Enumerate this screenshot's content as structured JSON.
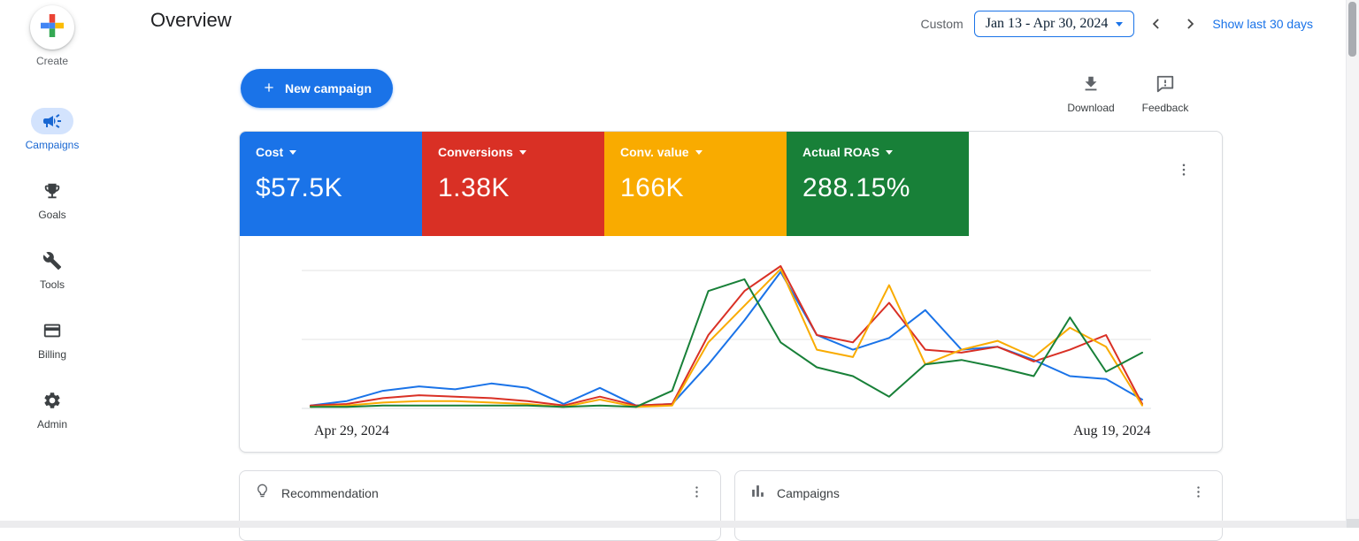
{
  "sidebar": {
    "items": [
      {
        "label": "Create",
        "icon": "plus-multicolor"
      },
      {
        "label": "Campaigns",
        "icon": "megaphone",
        "active": true
      },
      {
        "label": "Goals",
        "icon": "trophy"
      },
      {
        "label": "Tools",
        "icon": "wrench"
      },
      {
        "label": "Billing",
        "icon": "credit-card"
      },
      {
        "label": "Admin",
        "icon": "gear"
      }
    ]
  },
  "header": {
    "title": "Overview",
    "range_type_label": "Custom",
    "date_range": "Jan 13 - Apr 30, 2024",
    "show_last_label": "Show last 30 days"
  },
  "toolbar": {
    "new_campaign_label": "New campaign",
    "download_label": "Download",
    "feedback_label": "Feedback"
  },
  "scorecards": [
    {
      "label": "Cost",
      "value": "$57.5K",
      "color": "#1a73e8"
    },
    {
      "label": "Conversions",
      "value": "1.38K",
      "color": "#d93025"
    },
    {
      "label": "Conv. value",
      "value": "166K",
      "color": "#f9ab00"
    },
    {
      "label": "Actual ROAS",
      "value": "288.15%",
      "color": "#188038"
    }
  ],
  "chart_data": {
    "type": "line",
    "title": "",
    "xlabel": "",
    "ylabel": "",
    "x_axis": {
      "start_label": "Apr 29, 2024",
      "end_label": "Aug 19, 2024"
    },
    "y_axis": {
      "tick_labels_visible": false
    },
    "grid": true,
    "legend_position": "none",
    "values_unit": "percent_of_chart_height",
    "series": [
      {
        "name": "Cost",
        "color": "#1a73e8",
        "values": [
          2,
          5,
          12,
          15,
          13,
          17,
          14,
          3,
          14,
          2,
          3,
          30,
          60,
          93,
          50,
          40,
          48,
          67,
          40,
          42,
          33,
          22,
          20,
          6
        ]
      },
      {
        "name": "Conversions",
        "color": "#d93025",
        "values": [
          2,
          3,
          7,
          9,
          8,
          7,
          5,
          2,
          8,
          2,
          3,
          50,
          80,
          97,
          50,
          45,
          72,
          40,
          38,
          42,
          32,
          40,
          50,
          3
        ]
      },
      {
        "name": "Conv. value",
        "color": "#f9ab00",
        "values": [
          1,
          2,
          4,
          5,
          5,
          4,
          3,
          1,
          6,
          1,
          2,
          45,
          70,
          95,
          40,
          35,
          84,
          30,
          40,
          46,
          35,
          55,
          42,
          2
        ]
      },
      {
        "name": "Actual ROAS",
        "color": "#188038",
        "values": [
          1,
          1,
          2,
          2,
          2,
          2,
          2,
          1,
          2,
          1,
          12,
          80,
          88,
          45,
          28,
          22,
          8,
          30,
          33,
          28,
          22,
          62,
          25,
          38
        ]
      }
    ]
  },
  "bottom_cards": [
    {
      "title": "Recommendation",
      "icon": "lightbulb"
    },
    {
      "title": "Campaigns",
      "icon": "bar-chart"
    }
  ]
}
